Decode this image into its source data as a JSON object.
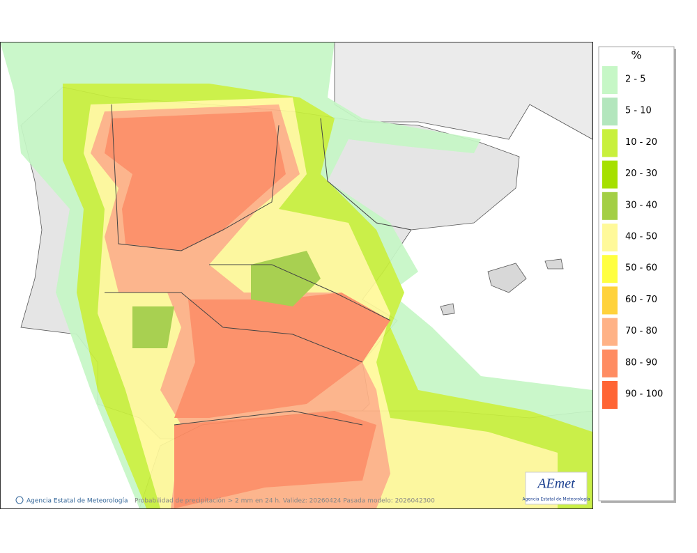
{
  "legend": {
    "title": "%",
    "items": [
      {
        "label": "2 - 5",
        "color": "#c6f7c6"
      },
      {
        "label": "5 - 10",
        "color": "#b3e6bd"
      },
      {
        "label": "10 - 20",
        "color": "#c8f03c"
      },
      {
        "label": "20 - 30",
        "color": "#a6e000"
      },
      {
        "label": "30 - 40",
        "color": "#a3cf45"
      },
      {
        "label": "40 - 50",
        "color": "#fff99a"
      },
      {
        "label": "50 - 60",
        "color": "#ffff40"
      },
      {
        "label": "60 - 70",
        "color": "#ffd23c"
      },
      {
        "label": "70 - 80",
        "color": "#ffb286"
      },
      {
        "label": "80 - 90",
        "color": "#ff8c62"
      },
      {
        "label": "90 - 100",
        "color": "#ff6535"
      }
    ]
  },
  "footer": {
    "credit": "Agencia Estatal de Meteorología",
    "caption": "Probabilidad de precipitación > 2 mm en 24 h. Validez: 20260424 Pasada modelo: 2026042300"
  },
  "logo": {
    "name": "AEmet",
    "subtitle": "Agencia Estatal de Meteorología"
  }
}
